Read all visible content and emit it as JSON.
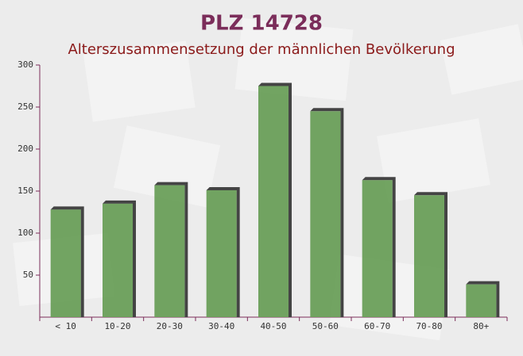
{
  "chart_data": {
    "type": "bar",
    "title": "PLZ 14728",
    "subtitle": "Alterszusammensetzung der männlichen Bevölkerung",
    "categories": [
      "< 10",
      "10-20",
      "20-30",
      "30-40",
      "40-50",
      "50-60",
      "60-70",
      "70-80",
      "80+"
    ],
    "values": [
      128,
      135,
      157,
      151,
      275,
      245,
      163,
      145,
      39
    ],
    "color": "#6a9f5a",
    "ylim": [
      0,
      300
    ],
    "yticks": [
      50,
      100,
      150,
      200,
      250,
      300
    ]
  }
}
